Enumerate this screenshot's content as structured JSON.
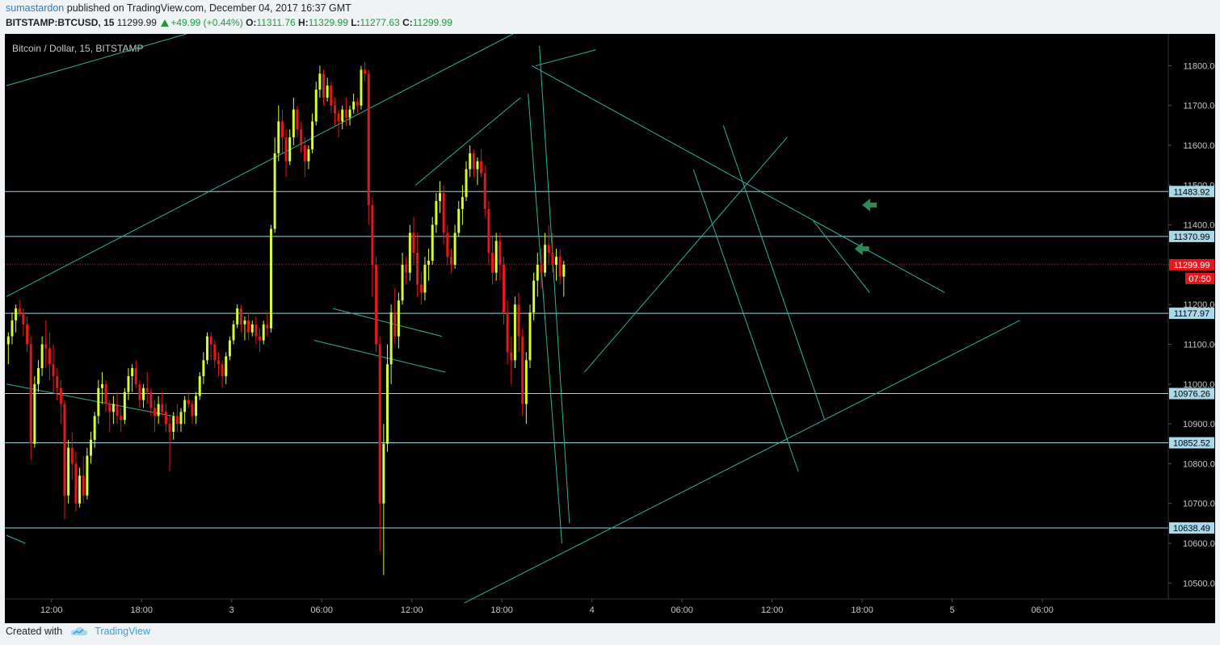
{
  "header": {
    "user": "sumastardon",
    "published_text": "published on TradingView.com, December 04, 2017 16:37 GMT",
    "symbol": "BITSTAMP:BTCUSD, 15",
    "last": "11299.99",
    "change": "+49.99 (+0.44%)",
    "open_label": "O:",
    "open": "11311.76",
    "high_label": "H:",
    "high": "11329.99",
    "low_label": "L:",
    "low": "11277.63",
    "close_label": "C:",
    "close": "11299.99"
  },
  "footer": {
    "created_with": "Created with",
    "brand": "TradingView"
  },
  "colors": {
    "up": "#d4ff33",
    "down": "#e8161c",
    "trendline": "#2fb39a",
    "hline": "#9dd4e0",
    "price_line": "#ff2020",
    "arrow": "#2e8b57",
    "background": "#000000"
  },
  "chart_data": {
    "type": "candlestick",
    "title": "Bitcoin / Dollar, 15, BITSTAMP",
    "y_range": [
      10460,
      11880
    ],
    "x_range_bars": [
      0,
      310
    ],
    "y_ticks": [
      "10500.00",
      "10600.00",
      "10700.00",
      "10800.00",
      "10900.00",
      "11000.00",
      "11100.00",
      "11200.00",
      "11300.00",
      "11400.00",
      "11500.00",
      "11600.00",
      "11700.00",
      "11800.00"
    ],
    "x_ticks": [
      {
        "label": "12:00",
        "bar": 12
      },
      {
        "label": "18:00",
        "bar": 36
      },
      {
        "label": "3",
        "bar": 60
      },
      {
        "label": "06:00",
        "bar": 84
      },
      {
        "label": "12:00",
        "bar": 108
      },
      {
        "label": "18:00",
        "bar": 132
      },
      {
        "label": "4",
        "bar": 156
      },
      {
        "label": "06:00",
        "bar": 180
      },
      {
        "label": "12:00",
        "bar": 204
      },
      {
        "label": "18:00",
        "bar": 228
      },
      {
        "label": "5",
        "bar": 252
      },
      {
        "label": "06:00",
        "bar": 276
      }
    ],
    "horizontal_levels": [
      11483.92,
      11370.99,
      11177.97,
      10976.26,
      10852.52,
      10638.49
    ],
    "level_labels": [
      "11483.92",
      "11370.99",
      "11177.97",
      "10976.26",
      "10852.52",
      "10638.49"
    ],
    "current_price": 11299.99,
    "current_price_label": "11299.99",
    "countdown": "07:50",
    "trendlines": [
      [
        [
          0,
          11750
        ],
        [
          48,
          11880
        ]
      ],
      [
        [
          0,
          11220
        ],
        [
          135,
          11880
        ]
      ],
      [
        [
          0,
          11000
        ],
        [
          44,
          10920
        ]
      ],
      [
        [
          0,
          10620
        ],
        [
          5,
          10600
        ]
      ],
      [
        [
          87,
          11190
        ],
        [
          116,
          11120
        ]
      ],
      [
        [
          82,
          11110
        ],
        [
          117,
          11030
        ]
      ],
      [
        [
          109,
          11500
        ],
        [
          137,
          11720
        ]
      ],
      [
        [
          140,
          11800
        ],
        [
          250,
          11230
        ]
      ],
      [
        [
          142,
          11850
        ],
        [
          150,
          10650
        ]
      ],
      [
        [
          139,
          11730
        ],
        [
          148,
          10600
        ]
      ],
      [
        [
          141,
          11800
        ],
        [
          157,
          11840
        ]
      ],
      [
        [
          154,
          11030
        ],
        [
          208,
          11620
        ]
      ],
      [
        [
          191,
          11650
        ],
        [
          218,
          10910
        ]
      ],
      [
        [
          183,
          11540
        ],
        [
          211,
          10780
        ]
      ],
      [
        [
          215,
          11410
        ],
        [
          230,
          11230
        ]
      ],
      [
        [
          122,
          10450
        ],
        [
          270,
          11160
        ]
      ]
    ],
    "arrows": [
      {
        "bar": 228,
        "price": 11450
      },
      {
        "bar": 226,
        "price": 11340
      }
    ],
    "candles": [
      [
        11100,
        11130,
        11050,
        11120
      ],
      [
        11120,
        11180,
        11100,
        11160
      ],
      [
        11160,
        11200,
        11130,
        11190
      ],
      [
        11190,
        11210,
        11170,
        11180
      ],
      [
        11180,
        11190,
        11120,
        11150
      ],
      [
        11150,
        11170,
        11080,
        11100
      ],
      [
        11100,
        11120,
        10810,
        10850
      ],
      [
        10850,
        11020,
        10840,
        11000
      ],
      [
        11000,
        11060,
        10980,
        11040
      ],
      [
        11040,
        11120,
        11020,
        11100
      ],
      [
        11100,
        11160,
        11040,
        11090
      ],
      [
        11090,
        11130,
        11010,
        11050
      ],
      [
        11050,
        11100,
        10980,
        11020
      ],
      [
        11020,
        11040,
        10960,
        10990
      ],
      [
        10990,
        11010,
        10900,
        10950
      ],
      [
        10950,
        10960,
        10660,
        10720
      ],
      [
        10720,
        10860,
        10700,
        10840
      ],
      [
        10840,
        10880,
        10760,
        10800
      ],
      [
        10800,
        10830,
        10680,
        10700
      ],
      [
        10700,
        10790,
        10690,
        10770
      ],
      [
        10770,
        10820,
        10700,
        10720
      ],
      [
        10720,
        10840,
        10710,
        10820
      ],
      [
        10820,
        10880,
        10800,
        10860
      ],
      [
        10860,
        10930,
        10840,
        10920
      ],
      [
        10920,
        11010,
        10900,
        10990
      ],
      [
        10990,
        11030,
        10950,
        11000
      ],
      [
        11000,
        11010,
        10930,
        10950
      ],
      [
        10950,
        10960,
        10880,
        10930
      ],
      [
        10930,
        10970,
        10900,
        10950
      ],
      [
        10950,
        10980,
        10900,
        10920
      ],
      [
        10920,
        10940,
        10880,
        10910
      ],
      [
        10910,
        10990,
        10900,
        10980
      ],
      [
        10980,
        11040,
        10960,
        11020
      ],
      [
        11020,
        11050,
        10980,
        11040
      ],
      [
        11040,
        11060,
        10990,
        11000
      ],
      [
        11000,
        11010,
        10940,
        10960
      ],
      [
        10960,
        11000,
        10940,
        10990
      ],
      [
        10990,
        11030,
        10950,
        10980
      ],
      [
        10980,
        10990,
        10920,
        10940
      ],
      [
        10940,
        10960,
        10880,
        10920
      ],
      [
        10920,
        10970,
        10900,
        10950
      ],
      [
        10950,
        10980,
        10920,
        10930
      ],
      [
        10930,
        10950,
        10880,
        10900
      ],
      [
        10900,
        10920,
        10780,
        10880
      ],
      [
        10880,
        10930,
        10860,
        10920
      ],
      [
        10920,
        10950,
        10880,
        10900
      ],
      [
        10900,
        10940,
        10880,
        10930
      ],
      [
        10930,
        10970,
        10900,
        10960
      ],
      [
        10960,
        10980,
        10940,
        10950
      ],
      [
        10950,
        10960,
        10900,
        10920
      ],
      [
        10920,
        10980,
        10900,
        10970
      ],
      [
        10970,
        11030,
        10960,
        11020
      ],
      [
        11020,
        11080,
        11000,
        11060
      ],
      [
        11060,
        11130,
        11050,
        11120
      ],
      [
        11120,
        11130,
        11060,
        11100
      ],
      [
        11100,
        11110,
        11040,
        11060
      ],
      [
        11060,
        11080,
        11020,
        11050
      ],
      [
        11050,
        11060,
        10990,
        11020
      ],
      [
        11020,
        11080,
        11000,
        11070
      ],
      [
        11070,
        11120,
        11060,
        11110
      ],
      [
        11110,
        11160,
        11100,
        11150
      ],
      [
        11150,
        11200,
        11140,
        11190
      ],
      [
        11190,
        11200,
        11130,
        11150
      ],
      [
        11150,
        11170,
        11110,
        11160
      ],
      [
        11160,
        11180,
        11110,
        11130
      ],
      [
        11130,
        11160,
        11120,
        11150
      ],
      [
        11150,
        11170,
        11100,
        11120
      ],
      [
        11120,
        11140,
        11080,
        11110
      ],
      [
        11110,
        11160,
        11100,
        11150
      ],
      [
        11150,
        11180,
        11120,
        11140
      ],
      [
        11140,
        11400,
        11130,
        11390
      ],
      [
        11390,
        11620,
        11380,
        11580
      ],
      [
        11580,
        11700,
        11560,
        11660
      ],
      [
        11660,
        11690,
        11580,
        11620
      ],
      [
        11620,
        11640,
        11520,
        11560
      ],
      [
        11560,
        11640,
        11550,
        11620
      ],
      [
        11620,
        11720,
        11600,
        11690
      ],
      [
        11690,
        11700,
        11620,
        11640
      ],
      [
        11640,
        11660,
        11580,
        11600
      ],
      [
        11600,
        11620,
        11520,
        11560
      ],
      [
        11560,
        11600,
        11540,
        11590
      ],
      [
        11590,
        11680,
        11580,
        11660
      ],
      [
        11660,
        11760,
        11650,
        11740
      ],
      [
        11740,
        11800,
        11720,
        11780
      ],
      [
        11780,
        11790,
        11700,
        11720
      ],
      [
        11720,
        11770,
        11710,
        11750
      ],
      [
        11750,
        11760,
        11680,
        11700
      ],
      [
        11700,
        11720,
        11650,
        11680
      ],
      [
        11680,
        11690,
        11620,
        11660
      ],
      [
        11660,
        11700,
        11640,
        11690
      ],
      [
        11690,
        11720,
        11650,
        11670
      ],
      [
        11670,
        11700,
        11650,
        11690
      ],
      [
        11690,
        11730,
        11680,
        11710
      ],
      [
        11710,
        11720,
        11680,
        11700
      ],
      [
        11700,
        11800,
        11690,
        11790
      ],
      [
        11790,
        11810,
        11760,
        11780
      ],
      [
        11780,
        11790,
        11400,
        11450
      ],
      [
        11450,
        11470,
        11220,
        11300
      ],
      [
        11300,
        11320,
        11080,
        11100
      ],
      [
        11100,
        11120,
        10580,
        10700
      ],
      [
        10700,
        10900,
        10520,
        10850
      ],
      [
        10850,
        11100,
        10830,
        11050
      ],
      [
        11050,
        11200,
        11000,
        11180
      ],
      [
        11180,
        11240,
        11100,
        11120
      ],
      [
        11120,
        11230,
        11090,
        11210
      ],
      [
        11210,
        11330,
        11200,
        11300
      ],
      [
        11300,
        11320,
        11250,
        11280
      ],
      [
        11280,
        11400,
        11260,
        11380
      ],
      [
        11380,
        11420,
        11300,
        11330
      ],
      [
        11330,
        11380,
        11220,
        11250
      ],
      [
        11250,
        11280,
        11200,
        11230
      ],
      [
        11230,
        11320,
        11210,
        11300
      ],
      [
        11300,
        11340,
        11260,
        11310
      ],
      [
        11310,
        11420,
        11300,
        11400
      ],
      [
        11400,
        11480,
        11380,
        11460
      ],
      [
        11460,
        11510,
        11430,
        11480
      ],
      [
        11480,
        11500,
        11350,
        11380
      ],
      [
        11380,
        11400,
        11300,
        11320
      ],
      [
        11320,
        11340,
        11280,
        11300
      ],
      [
        11300,
        11400,
        11290,
        11380
      ],
      [
        11380,
        11460,
        11370,
        11440
      ],
      [
        11440,
        11500,
        11400,
        11470
      ],
      [
        11470,
        11560,
        11460,
        11540
      ],
      [
        11540,
        11600,
        11520,
        11580
      ],
      [
        11580,
        11590,
        11520,
        11540
      ],
      [
        11540,
        11570,
        11500,
        11560
      ],
      [
        11560,
        11590,
        11520,
        11530
      ],
      [
        11530,
        11550,
        11420,
        11440
      ],
      [
        11440,
        11460,
        11300,
        11330
      ],
      [
        11330,
        11370,
        11250,
        11280
      ],
      [
        11280,
        11380,
        11260,
        11360
      ],
      [
        11360,
        11380,
        11260,
        11300
      ],
      [
        11300,
        11320,
        11150,
        11180
      ],
      [
        11180,
        11210,
        11050,
        11080
      ],
      [
        11080,
        11120,
        11000,
        11060
      ],
      [
        11060,
        11220,
        11040,
        11200
      ],
      [
        11200,
        11230,
        11080,
        11120
      ],
      [
        11120,
        11140,
        10920,
        10950
      ],
      [
        10950,
        11080,
        10900,
        11060
      ],
      [
        11060,
        11200,
        11040,
        11180
      ],
      [
        11180,
        11280,
        11160,
        11260
      ],
      [
        11260,
        11330,
        11220,
        11300
      ],
      [
        11300,
        11340,
        11240,
        11280
      ],
      [
        11280,
        11380,
        11270,
        11350
      ],
      [
        11350,
        11400,
        11300,
        11330
      ],
      [
        11330,
        11380,
        11280,
        11300
      ],
      [
        11300,
        11340,
        11260,
        11320
      ],
      [
        11320,
        11340,
        11250,
        11270
      ],
      [
        11270,
        11310,
        11220,
        11300
      ]
    ]
  }
}
